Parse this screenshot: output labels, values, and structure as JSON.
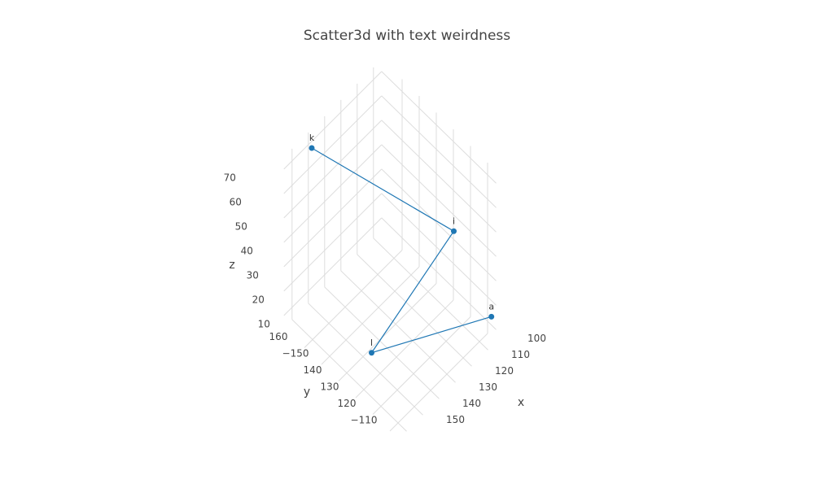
{
  "chart_data": {
    "type": "scatter3d",
    "title": "Scatter3d with text weirdness",
    "x": [
      100,
      140,
      100,
      140
    ],
    "y": [
      103,
      135,
      125,
      170
    ],
    "z": [
      20,
      10,
      40,
      70
    ],
    "text": [
      "a",
      "l",
      "i",
      "k"
    ],
    "color": "#1f77b4",
    "xlabel": "x",
    "ylabel": "y",
    "zlabel": "z",
    "xlim": [
      95,
      155
    ],
    "ylim": [
      105,
      172
    ],
    "zlim": [
      5,
      75
    ],
    "xticks": [
      100,
      110,
      120,
      130,
      140,
      150
    ],
    "yticks": [
      {
        "value": 110,
        "label": "−110"
      },
      120,
      130,
      140,
      {
        "value": 150,
        "label": "−150"
      },
      160
    ],
    "zticks": [
      10,
      20,
      30,
      40,
      50,
      60,
      70
    ],
    "grid": true
  }
}
